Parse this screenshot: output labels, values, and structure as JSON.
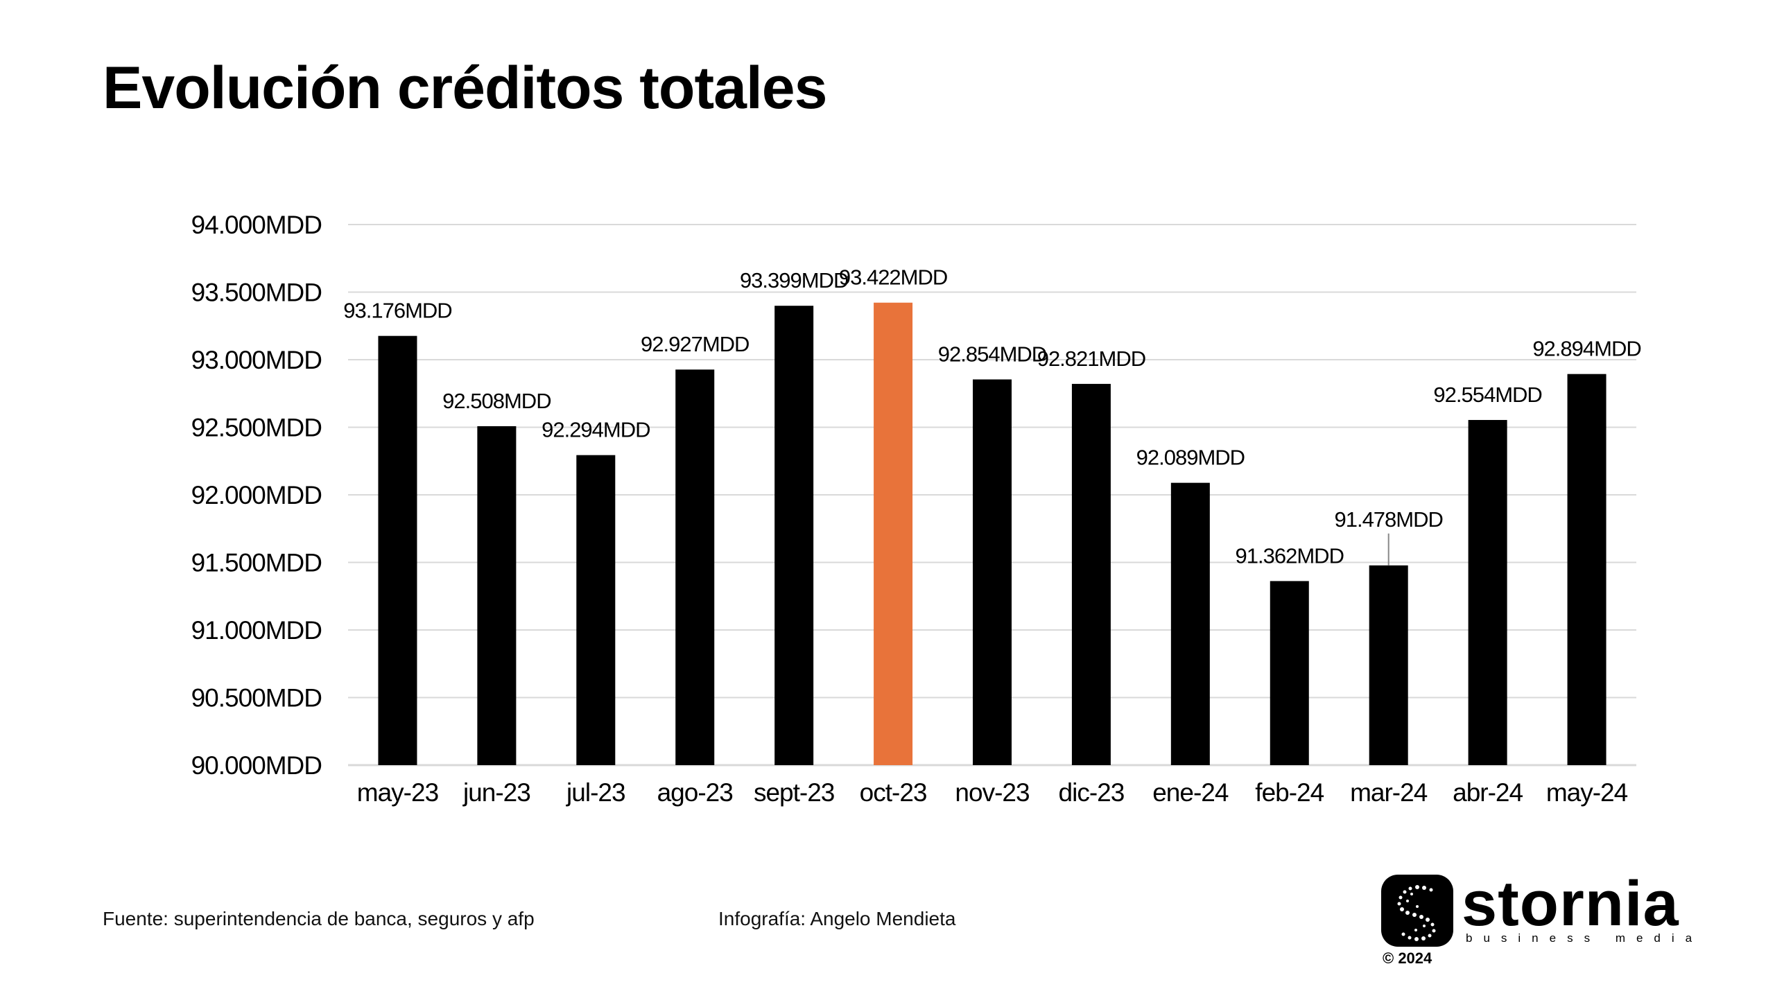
{
  "title": "Evolución créditos totales",
  "footer": {
    "source": "Fuente: superintendencia de banca, seguros y afp",
    "credit": "Infografía: Angelo Mendieta"
  },
  "logo": {
    "name": "stornia",
    "tagline": "business media",
    "copyright": "© 2024"
  },
  "colors": {
    "bar": "#000000",
    "highlight": "#E8733A",
    "grid": "#d9d9d9"
  },
  "chart_data": {
    "type": "bar",
    "title": "Evolución créditos totales",
    "xlabel": "",
    "ylabel": "",
    "ylim": [
      90000,
      94000
    ],
    "yticks": [
      90000,
      90500,
      91000,
      91500,
      92000,
      92500,
      93000,
      93500,
      94000
    ],
    "ytick_labels": [
      "90.000MDD",
      "90.500MDD",
      "91.000MDD",
      "91.500MDD",
      "92.000MDD",
      "92.500MDD",
      "93.000MDD",
      "93.500MDD",
      "94.000MDD"
    ],
    "grid": true,
    "legend": "none",
    "highlight_category": "oct-23",
    "categories": [
      "may-23",
      "jun-23",
      "jul-23",
      "ago-23",
      "sept-23",
      "oct-23",
      "nov-23",
      "dic-23",
      "ene-24",
      "feb-24",
      "mar-24",
      "abr-24",
      "may-24"
    ],
    "values": [
      93176,
      92508,
      92294,
      92927,
      93399,
      93422,
      92854,
      92821,
      92089,
      91362,
      91478,
      92554,
      92894
    ],
    "data_labels": [
      "93.176MDD",
      "92.508MDD",
      "92.294MDD",
      "92.927MDD",
      "93.399MDD",
      "93.422MDD",
      "92.854MDD",
      "92.821MDD",
      "92.089MDD",
      "91.362MDD",
      "91.478MDD",
      "92.554MDD",
      "92.894MDD"
    ]
  }
}
